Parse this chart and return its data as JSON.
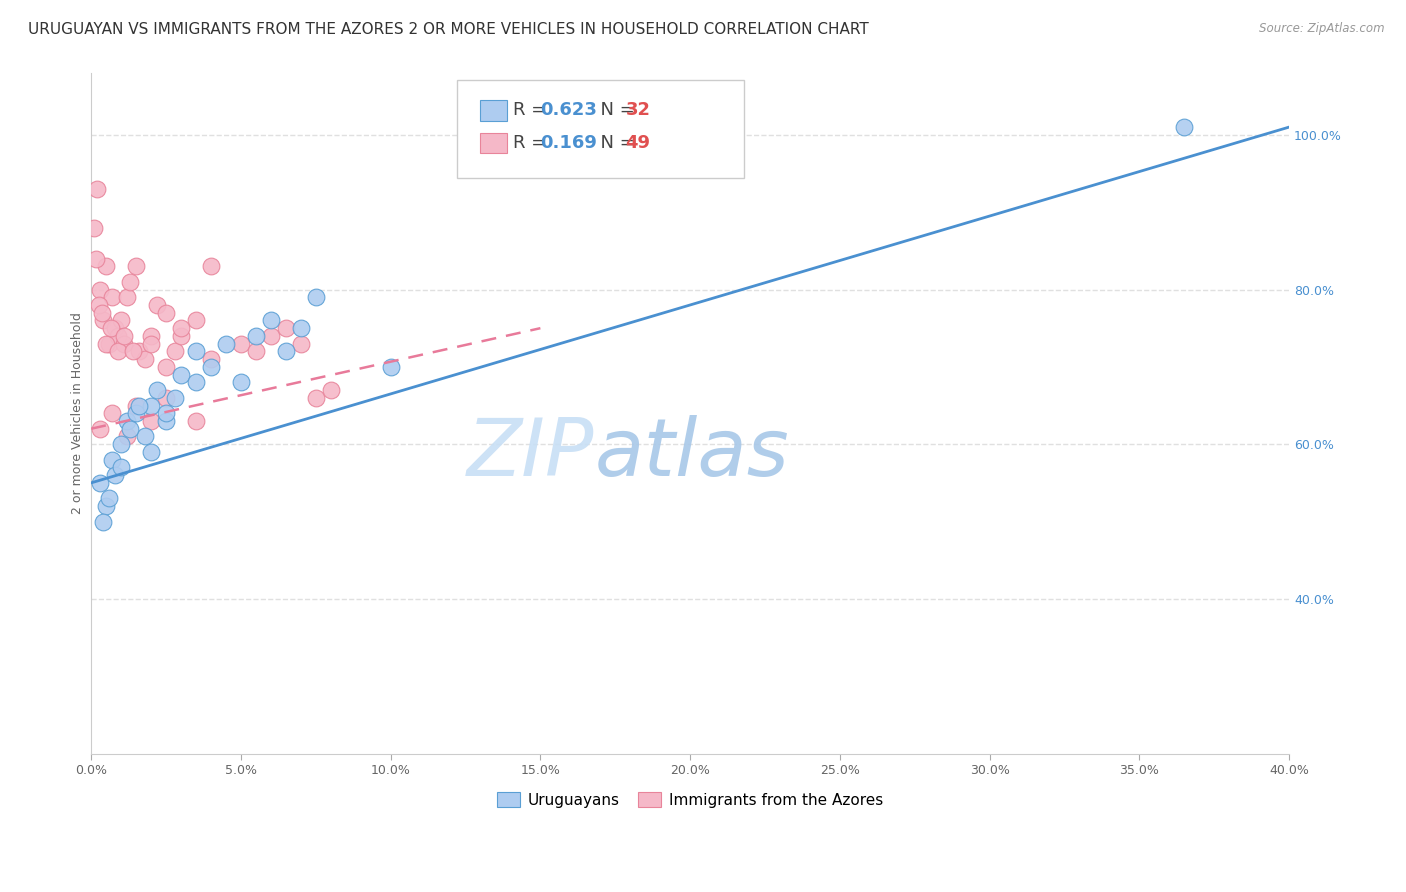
{
  "title": "URUGUAYAN VS IMMIGRANTS FROM THE AZORES 2 OR MORE VEHICLES IN HOUSEHOLD CORRELATION CHART",
  "source": "Source: ZipAtlas.com",
  "ylabel": "2 or more Vehicles in Household",
  "right_yticks": [
    40.0,
    60.0,
    80.0,
    100.0
  ],
  "right_ytick_labels": [
    "40.0%",
    "60.0%",
    "80.0%",
    "100.0%"
  ],
  "legend_blue_r": "0.623",
  "legend_blue_n": "32",
  "legend_pink_r": "0.169",
  "legend_pink_n": "49",
  "legend_blue_label": "Uruguayans",
  "legend_pink_label": "Immigrants from the Azores",
  "watermark_zip": "ZIP",
  "watermark_atlas": "atlas",
  "blue_color": "#aeccf0",
  "pink_color": "#f5b8c8",
  "blue_edge_color": "#5a9fd4",
  "pink_edge_color": "#e8849a",
  "blue_line_color": "#4a90d0",
  "pink_line_color": "#e87a9a",
  "r_value_color": "#4a90d0",
  "n_value_color": "#e05050",
  "uruguayans_x": [
    0.3,
    0.5,
    0.7,
    0.8,
    1.0,
    1.2,
    1.5,
    1.8,
    2.0,
    2.2,
    2.5,
    2.8,
    3.0,
    3.5,
    4.0,
    4.5,
    5.0,
    5.5,
    6.0,
    6.5,
    7.0,
    7.5,
    0.4,
    0.6,
    1.0,
    1.3,
    1.6,
    2.0,
    2.5,
    3.5,
    10.0,
    36.5
  ],
  "uruguayans_y": [
    55,
    52,
    58,
    56,
    60,
    63,
    64,
    61,
    65,
    67,
    63,
    66,
    69,
    72,
    70,
    73,
    68,
    74,
    76,
    72,
    75,
    79,
    50,
    53,
    57,
    62,
    65,
    59,
    64,
    68,
    70,
    101
  ],
  "azores_x": [
    0.1,
    0.2,
    0.3,
    0.4,
    0.5,
    0.6,
    0.7,
    0.8,
    0.9,
    1.0,
    1.1,
    1.2,
    1.3,
    1.5,
    1.6,
    1.8,
    2.0,
    2.2,
    2.5,
    2.8,
    3.0,
    3.5,
    4.0,
    0.15,
    0.25,
    0.35,
    0.5,
    0.65,
    0.9,
    1.1,
    1.4,
    2.0,
    2.5,
    3.0,
    4.0,
    5.0,
    5.5,
    6.0,
    6.5,
    7.0,
    7.5,
    8.0,
    1.5,
    2.5,
    3.5,
    0.3,
    0.7,
    1.2,
    2.0
  ],
  "azores_y": [
    88,
    93,
    80,
    76,
    83,
    73,
    79,
    75,
    74,
    76,
    73,
    79,
    81,
    83,
    72,
    71,
    74,
    78,
    77,
    72,
    74,
    76,
    83,
    84,
    78,
    77,
    73,
    75,
    72,
    74,
    72,
    73,
    70,
    75,
    71,
    73,
    72,
    74,
    75,
    73,
    66,
    67,
    65,
    66,
    63,
    62,
    64,
    61,
    63
  ],
  "xlim": [
    0,
    40
  ],
  "ylim": [
    20,
    108
  ],
  "xticks": [
    0,
    5,
    10,
    15,
    20,
    25,
    30,
    35,
    40
  ],
  "xticklabels": [
    "0.0%",
    "5.0%",
    "10.0%",
    "15.0%",
    "20.0%",
    "25.0%",
    "30.0%",
    "35.0%",
    "40.0%"
  ],
  "bg_color": "#ffffff",
  "grid_color": "#e0e0e0",
  "marker_size": 11,
  "title_fontsize": 11,
  "axis_label_fontsize": 9,
  "tick_fontsize": 9
}
